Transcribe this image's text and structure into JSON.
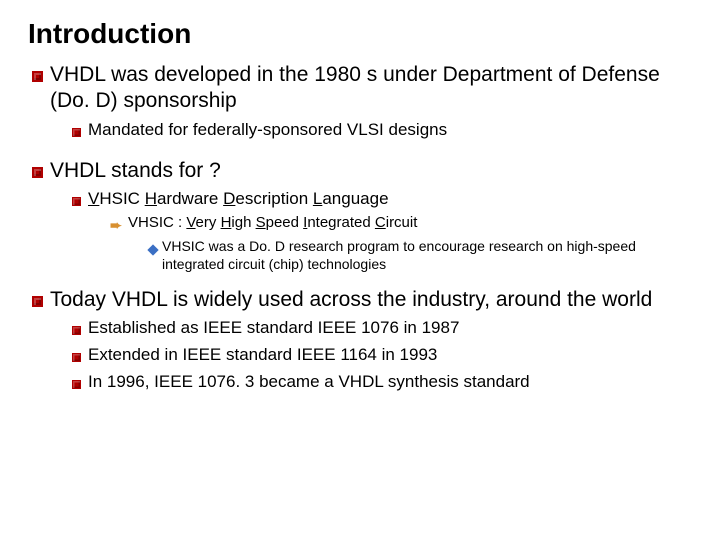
{
  "title": "Introduction",
  "colors": {
    "bullet_red": "#b00000",
    "arrow_orange": "#d89030",
    "diamond_blue": "#3b6fc4",
    "text": "#000000",
    "background": "#ffffff"
  },
  "typography": {
    "font_family": "Comic Sans MS",
    "title_size_pt": 21,
    "lvl1_size_pt": 16,
    "lvl2_size_pt": 13,
    "lvl3_size_pt": 11,
    "lvl4_size_pt": 10
  },
  "items": [
    {
      "text": "VHDL was developed in the 1980 s under Department of Defense (Do. D) sponsorship",
      "sub": [
        {
          "text": "Mandated for federally-sponsored VLSI designs"
        }
      ]
    },
    {
      "text": "VHDL stands for ?",
      "sub": [
        {
          "html": "<u>V</u>HSIC <u>H</u>ardware <u>D</u>escription <u>L</u>anguage",
          "sub3": [
            {
              "html": "VHSIC : <u>V</u>ery <u>H</u>igh <u>S</u>peed <u>I</u>ntegrated <u>C</u>ircuit",
              "sub4": [
                {
                  "text": "VHSIC was a Do. D research program to encourage research on high-speed integrated circuit (chip) technologies"
                }
              ]
            }
          ]
        }
      ]
    },
    {
      "text": "Today VHDL is widely used across the industry, around the world",
      "sub": [
        {
          "text": "Established as IEEE standard IEEE 1076 in 1987"
        },
        {
          "text": "Extended in IEEE standard IEEE 1164 in 1993"
        },
        {
          "text": "In 1996, IEEE 1076. 3 became a VHDL synthesis standard"
        }
      ]
    }
  ]
}
